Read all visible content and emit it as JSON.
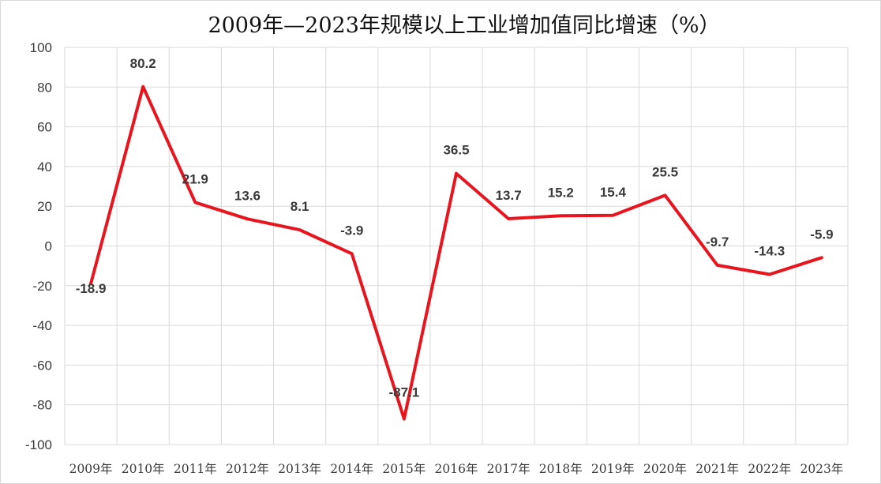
{
  "chart_data": {
    "type": "line",
    "title": "2009年—2023年规模以上工业增加值同比增速（%）",
    "xlabel": "",
    "ylabel": "",
    "categories": [
      "2009年",
      "2010年",
      "2011年",
      "2012年",
      "2013年",
      "2014年",
      "2015年",
      "2016年",
      "2017年",
      "2018年",
      "2019年",
      "2020年",
      "2021年",
      "2022年",
      "2023年"
    ],
    "series": [
      {
        "values": [
          -18.9,
          80.2,
          21.9,
          13.6,
          8.1,
          -3.9,
          -87.1,
          36.5,
          13.7,
          15.2,
          15.4,
          25.5,
          -9.7,
          -14.3,
          -5.9
        ]
      }
    ],
    "data_labels": [
      "-18.9",
      "80.2",
      "21.9",
      "13.6",
      "8.1",
      "-3.9",
      "-87.1",
      "36.5",
      "13.7",
      "15.2",
      "15.4",
      "25.5",
      "-9.7",
      "-14.3",
      "-5.9"
    ],
    "ylim": [
      -100,
      100
    ],
    "yticks": [
      "100",
      "80",
      "60",
      "40",
      "20",
      "0",
      "-20",
      "-40",
      "-60",
      "-80",
      "-100"
    ],
    "grid": true,
    "legend": "none",
    "line_color": "#e8141e"
  }
}
